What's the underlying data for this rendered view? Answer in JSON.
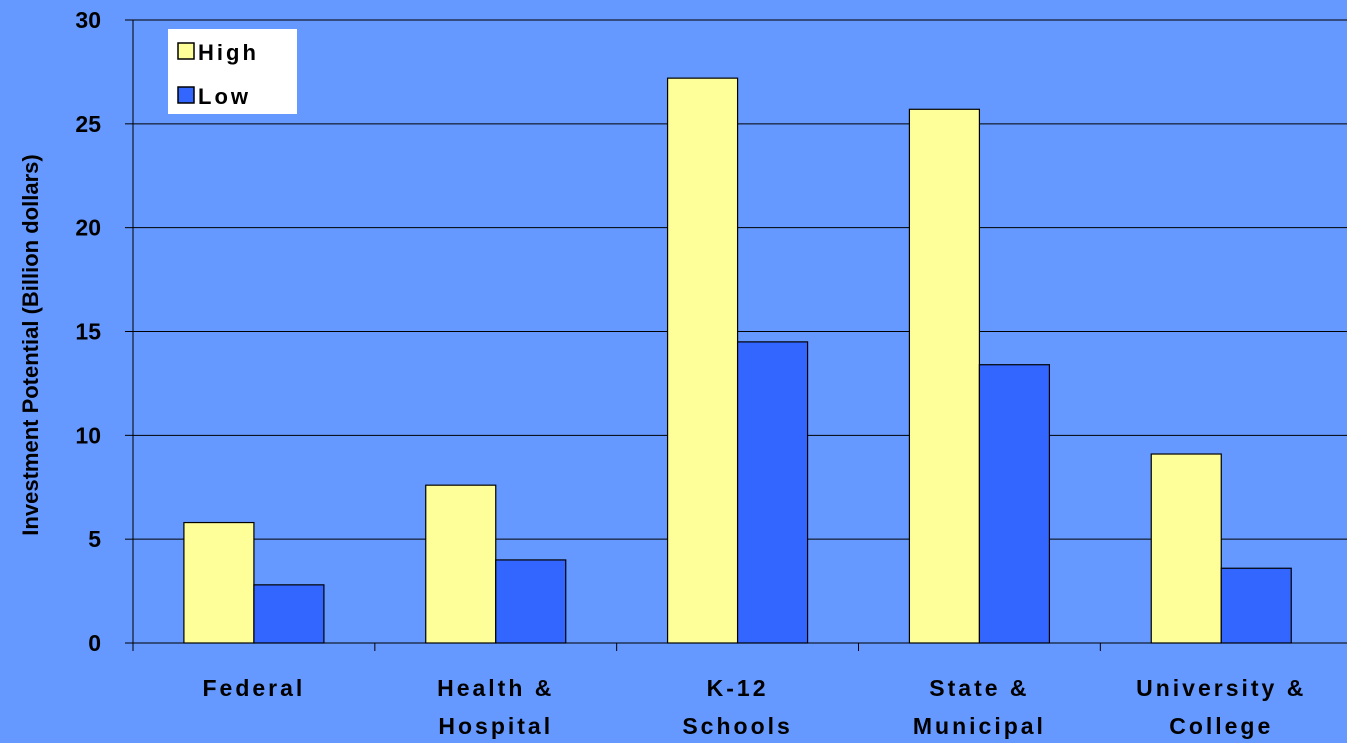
{
  "chart_data": {
    "type": "bar",
    "title": "",
    "xlabel": "",
    "ylabel": "Investment Potential (Billion dollars)",
    "ylim": [
      0,
      30
    ],
    "yticks": [
      0,
      5,
      10,
      15,
      20,
      25,
      30
    ],
    "grid": true,
    "legend_position": "top-left",
    "categories": [
      [
        "Federal"
      ],
      [
        "Health &",
        "Hospital"
      ],
      [
        "K-12",
        "Schools"
      ],
      [
        "State &",
        "Municipal"
      ],
      [
        "University &",
        "College"
      ]
    ],
    "series": [
      {
        "name": "High",
        "color": "#ffff99",
        "values": [
          5.8,
          7.6,
          27.2,
          25.7,
          9.1
        ]
      },
      {
        "name": "Low",
        "color": "#3366ff",
        "values": [
          2.8,
          4.0,
          14.5,
          13.4,
          3.6
        ]
      }
    ],
    "background_color": "#6699ff"
  }
}
